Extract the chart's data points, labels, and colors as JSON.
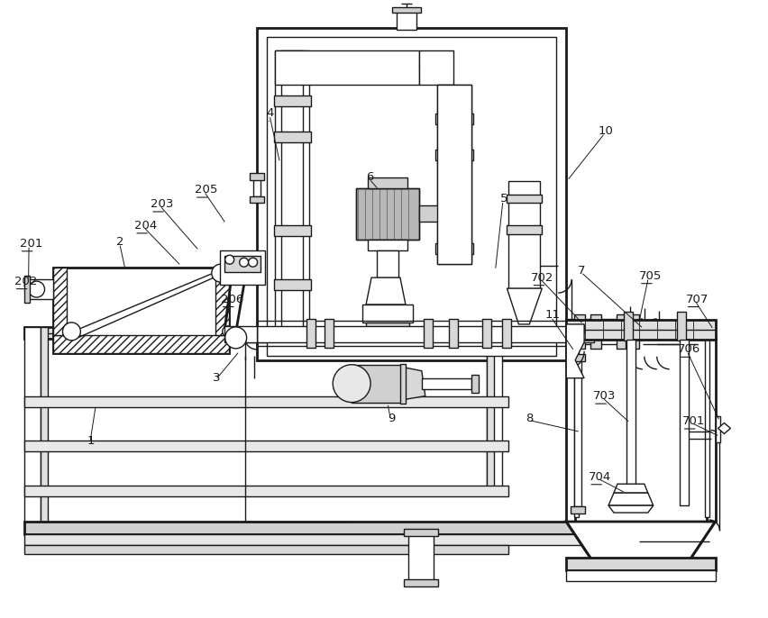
{
  "bg_color": "#ffffff",
  "line_color": "#1a1a1a",
  "lw": 1.0,
  "tlw": 2.0,
  "fig_w": 8.53,
  "fig_h": 6.86,
  "font_size": 9.5,
  "underlined": [
    "4",
    "201",
    "202",
    "203",
    "204",
    "205",
    "206",
    "701",
    "702",
    "703",
    "704",
    "705",
    "706",
    "707"
  ]
}
